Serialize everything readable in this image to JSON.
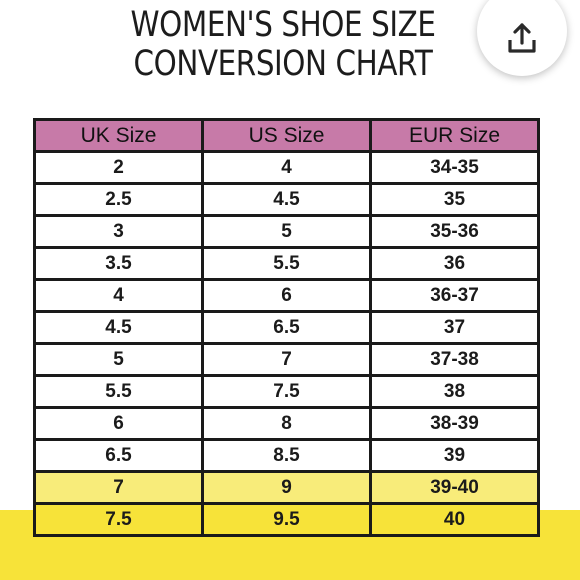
{
  "title": {
    "line1": "WOMEN'S SHOE SIZE",
    "line2": "CONVERSION CHART"
  },
  "share_button": {
    "icon": "share-icon"
  },
  "table": {
    "headers": [
      "UK Size",
      "US Size",
      "EUR Size"
    ],
    "rows": [
      [
        "2",
        "4",
        "34-35"
      ],
      [
        "2.5",
        "4.5",
        "35"
      ],
      [
        "3",
        "5",
        "35-36"
      ],
      [
        "3.5",
        "5.5",
        "36"
      ],
      [
        "4",
        "6",
        "36-37"
      ],
      [
        "4.5",
        "6.5",
        "37"
      ],
      [
        "5",
        "7",
        "37-38"
      ],
      [
        "5.5",
        "7.5",
        "38"
      ],
      [
        "6",
        "8",
        "38-39"
      ],
      [
        "6.5",
        "8.5",
        "39"
      ],
      [
        "7",
        "9",
        "39-40"
      ],
      [
        "7.5",
        "9.5",
        "40"
      ]
    ],
    "header_color": "#c77aa8",
    "highlight_color": "#f7e339"
  }
}
